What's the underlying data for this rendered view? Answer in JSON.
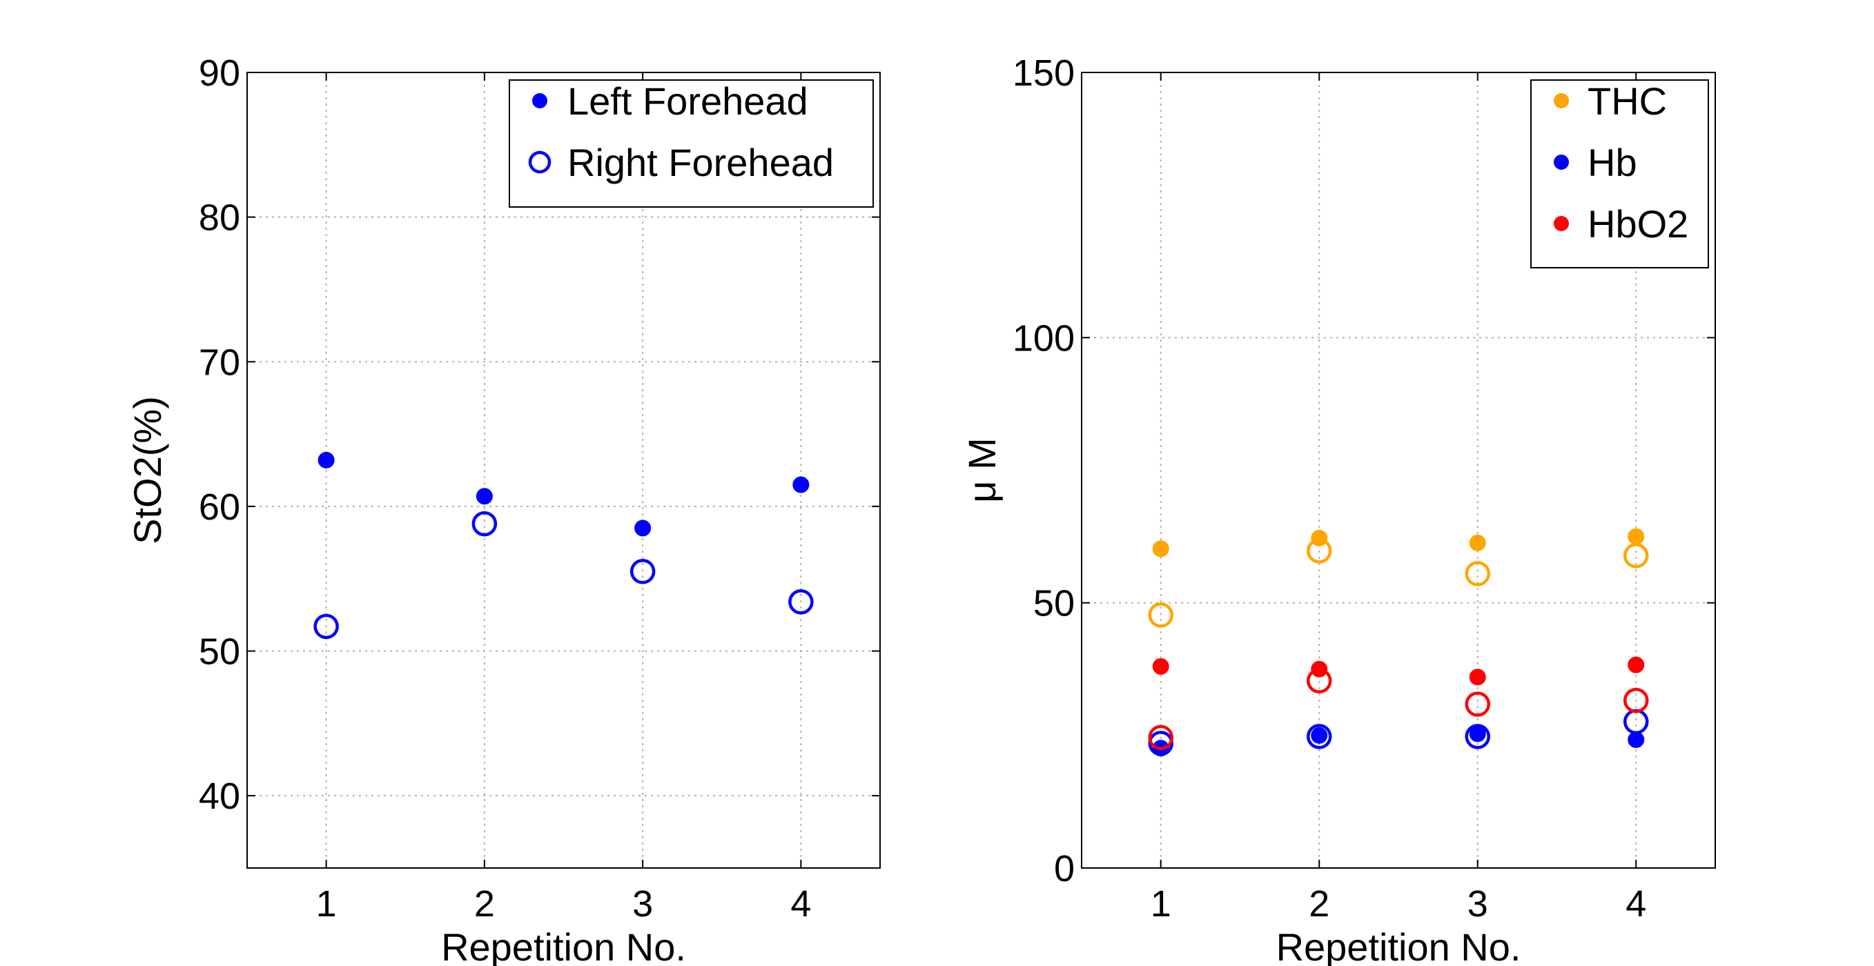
{
  "chart_data": [
    {
      "type": "scatter",
      "xlabel": "Repetition No.",
      "ylabel": "StO2(%)",
      "xlim": [
        0.5,
        4.5
      ],
      "ylim": [
        35,
        90
      ],
      "xticks": [
        1,
        2,
        3,
        4
      ],
      "yticks": [
        40,
        50,
        60,
        70,
        80,
        90
      ],
      "grid": true,
      "legend_placement": "top-right",
      "series": [
        {
          "name": "Left Forehead",
          "marker": "filled",
          "color": "#0000ff",
          "x": [
            1,
            2,
            3,
            4
          ],
          "y": [
            63.2,
            60.7,
            58.5,
            61.5
          ]
        },
        {
          "name": "Right Forehead",
          "marker": "open",
          "color": "#0000ff",
          "x": [
            1,
            2,
            3,
            4
          ],
          "y": [
            51.7,
            58.8,
            55.5,
            53.4
          ]
        }
      ]
    },
    {
      "type": "scatter",
      "xlabel": "Repetition No.",
      "ylabel": "μ M",
      "xlim": [
        0.5,
        4.5
      ],
      "ylim": [
        0,
        150
      ],
      "xticks": [
        1,
        2,
        3,
        4
      ],
      "yticks": [
        0,
        50,
        100,
        150
      ],
      "grid": true,
      "legend_placement": "top-right",
      "legend": [
        {
          "name": "THC",
          "color": "#ffa500"
        },
        {
          "name": "Hb",
          "color": "#0000ff"
        },
        {
          "name": "HbO2",
          "color": "#ff0000"
        }
      ],
      "series": [
        {
          "name": "THC",
          "marker": "filled",
          "color": "#ffa500",
          "x": [
            1,
            2,
            3,
            4
          ],
          "y": [
            60.2,
            62.2,
            61.3,
            62.5
          ]
        },
        {
          "name": "THC",
          "marker": "open",
          "color": "#ffa500",
          "x": [
            1,
            2,
            3,
            4
          ],
          "y": [
            47.7,
            59.8,
            55.5,
            58.9
          ]
        },
        {
          "name": "Hb",
          "marker": "filled",
          "color": "#0000ff",
          "x": [
            1,
            2,
            3,
            4
          ],
          "y": [
            22.6,
            25.0,
            25.3,
            24.2
          ]
        },
        {
          "name": "Hb",
          "marker": "open",
          "color": "#0000ff",
          "x": [
            1,
            2,
            3,
            4
          ],
          "y": [
            23.5,
            24.8,
            24.8,
            27.6
          ]
        },
        {
          "name": "HbO2",
          "marker": "filled",
          "color": "#ff0000",
          "x": [
            1,
            2,
            3,
            4
          ],
          "y": [
            38.0,
            37.5,
            36.0,
            38.3
          ]
        },
        {
          "name": "HbO2",
          "marker": "open",
          "color": "#ff0000",
          "x": [
            1,
            2,
            3,
            4
          ],
          "y": [
            24.6,
            35.3,
            30.9,
            31.6
          ]
        }
      ]
    }
  ]
}
